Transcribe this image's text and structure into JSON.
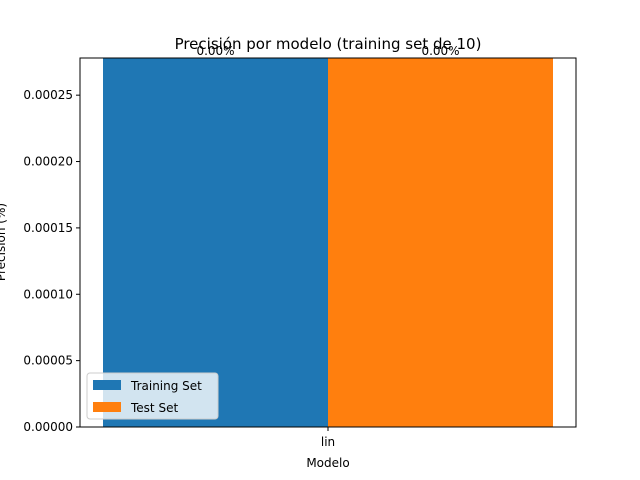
{
  "chart_data": {
    "type": "bar",
    "title": "Precisión por modelo (training set de 10)",
    "xlabel": "Modelo",
    "ylabel": "Precisión (%)",
    "categories": [
      "lin"
    ],
    "series": [
      {
        "name": "Training Set",
        "values": [
          0.000278
        ],
        "label": "0.00%",
        "color": "#1f77b4"
      },
      {
        "name": "Test Set",
        "values": [
          0.000278
        ],
        "label": "0.00%",
        "color": "#ff7f0e"
      }
    ],
    "ylim": [
      0,
      0.000278
    ],
    "yticks": [
      "0.00000",
      "0.00005",
      "0.00010",
      "0.00015",
      "0.00020",
      "0.00025"
    ],
    "ytick_values": [
      0,
      5e-05,
      0.0001,
      0.00015,
      0.0002,
      0.00025
    ],
    "grid": false,
    "legend_position": "lower-left"
  }
}
